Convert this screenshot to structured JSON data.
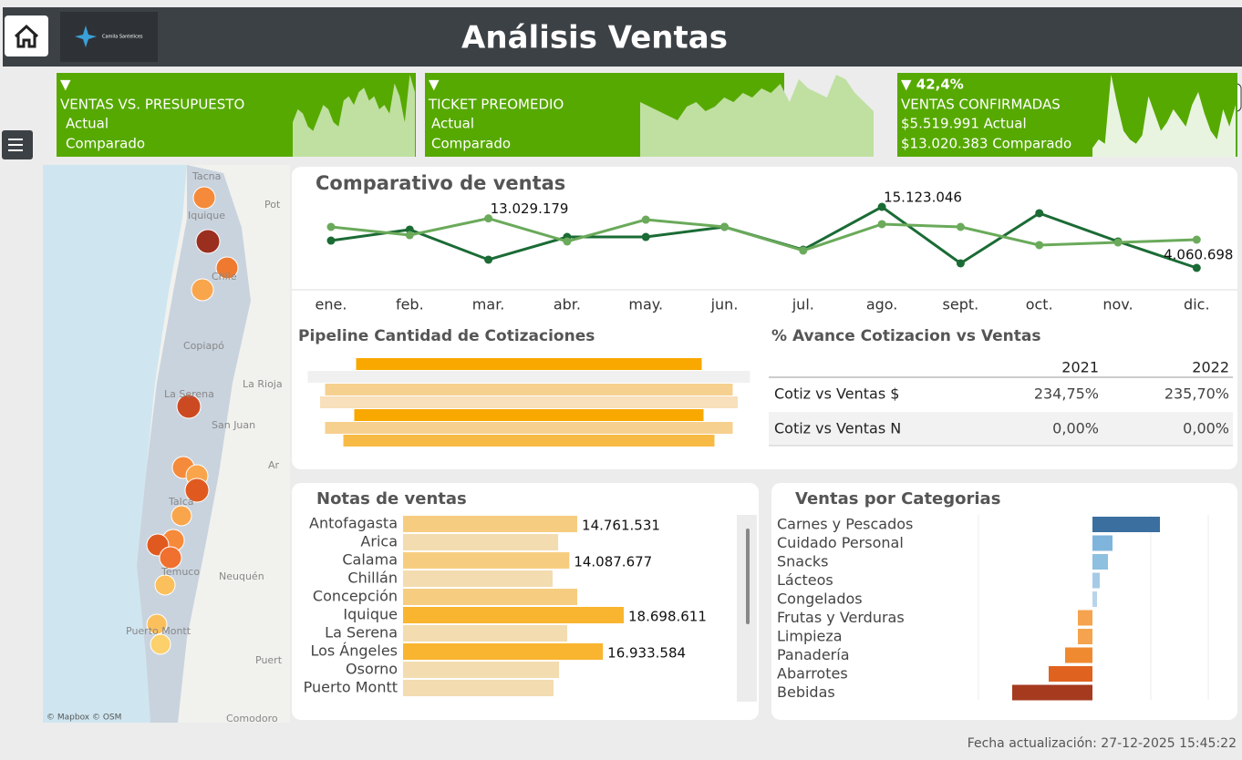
{
  "header": {
    "title": "Análisis Ventas",
    "logo_text": "Camila Santelices"
  },
  "kpis": [
    {
      "indicator": "▼",
      "title": "VENTAS VS. PRESUPUESTO",
      "line1": "Actual",
      "line2": "Comparado",
      "color": "#56a900",
      "spark_color": "#bfe0a0",
      "spark": [
        40,
        55,
        50,
        35,
        30,
        45,
        60,
        55,
        40,
        35,
        65,
        70,
        60,
        75,
        80,
        65,
        70,
        55,
        60,
        50,
        85,
        70,
        40,
        95,
        75
      ]
    },
    {
      "indicator": "▼",
      "title": "TICKET PREOMEDIO",
      "line1": "Actual",
      "line2": "Comparado",
      "color": "#56a900",
      "spark_color": "#bfe0a0",
      "spark": [
        60,
        55,
        50,
        45,
        40,
        55,
        60,
        50,
        55,
        65,
        60,
        70,
        65,
        75,
        70,
        80,
        60,
        85,
        75,
        70,
        65,
        90,
        85,
        70,
        60,
        50
      ]
    },
    {
      "indicator": "▼ 42,4%",
      "title": "VENTAS CONFIRMADAS",
      "line1": "$5.519.991 Actual",
      "line2": "$13.020.383 Comparado",
      "color": "#56a900",
      "spark_color": "#e8f4e0",
      "spark": [
        10,
        20,
        15,
        95,
        60,
        30,
        20,
        15,
        25,
        70,
        50,
        30,
        40,
        55,
        45,
        35,
        60,
        75,
        50,
        30,
        20,
        55,
        35,
        60
      ]
    }
  ],
  "map": {
    "attribution": "© Mapbox © OSM",
    "places": [
      "Tacna",
      "Iquique",
      "Chile",
      "Copiapó",
      "La Serena",
      "La Rioja",
      "San Juan",
      "Ar",
      "Talca",
      "Temuco",
      "Neuquén",
      "Puerto Montt",
      "Puert",
      "Comodoro",
      "Pot"
    ]
  },
  "line_chart": {
    "type": "line",
    "title": "Comparativo de ventas",
    "categories": [
      "ene.",
      "feb.",
      "mar.",
      "abr.",
      "may.",
      "jun.",
      "jul.",
      "ago.",
      "sept.",
      "oct.",
      "nov.",
      "dic."
    ],
    "series": [
      {
        "color": "#1b6b35",
        "values": [
          9010000,
          11000000,
          5550000,
          9670000,
          9670000,
          11490000,
          7360000,
          15123046,
          4890000,
          13970000,
          8850000,
          4060698
        ],
        "value_labels": [
          null,
          null,
          null,
          null,
          null,
          null,
          null,
          "15.123.046",
          null,
          null,
          null,
          "4.060.698"
        ]
      },
      {
        "color": "#6aaa5a",
        "values": [
          11490000,
          10000000,
          13029179,
          8850000,
          12810000,
          11490000,
          7200000,
          11990000,
          11490000,
          8190000,
          8680000,
          9180000
        ],
        "value_labels": [
          null,
          null,
          "13.029.179",
          null,
          null,
          null,
          null,
          null,
          null,
          null,
          null,
          null
        ]
      }
    ]
  },
  "pipeline": {
    "type": "funnel",
    "title": "Pipeline Cantidad de Cotizaciones",
    "values": [
      379,
      485,
      447,
      458,
      383,
      447,
      407
    ],
    "colors": [
      "#f9a800",
      "#f0f0f0",
      "#f6d08f",
      "#f7e0bb",
      "#f9a800",
      "#f6d08f",
      "#f7bb45"
    ]
  },
  "table": {
    "title": "% Avance Cotizacion vs Ventas",
    "columns": [
      "2021",
      "2022"
    ],
    "rows": [
      {
        "label": "Cotiz vs Ventas $",
        "values": [
          "234,75%",
          "235,70%"
        ]
      },
      {
        "label": "Cotiz vs Ventas N",
        "values": [
          "0,00%",
          "0,00%"
        ]
      }
    ]
  },
  "notas": {
    "type": "hbar",
    "title": "Notas de ventas",
    "categories": [
      "Antofagasta",
      "Arica",
      "Calama",
      "Chillán",
      "Concepción",
      "Iquique",
      "La Serena",
      "Los Ángeles",
      "Osorno",
      "Puerto Montt"
    ],
    "values": [
      14761531,
      13140000,
      14087677,
      12670000,
      14760000,
      18698611,
      13910000,
      16933584,
      13220000,
      12750000
    ],
    "value_labels": [
      "14.761.531",
      null,
      "14.087.677",
      null,
      null,
      "18.698.611",
      null,
      "16.933.584",
      null,
      null
    ],
    "colors": [
      "#f6cd80",
      "#f3dcb0",
      "#f6cd80",
      "#f3dcb0",
      "#f6cd80",
      "#f9b52f",
      "#f3dcb0",
      "#f9b52f",
      "#f3dcb0",
      "#f3dcb0"
    ]
  },
  "categorias": {
    "type": "hbar",
    "title": "Ventas por Categorias",
    "categories": [
      "Carnes y Pescados",
      "Cuidado Personal",
      "Snacks",
      "Lácteos",
      "Congelados",
      "Frutas y Verduras",
      "Limpieza",
      "Panadería",
      "Abarrotes",
      "Bebidas"
    ],
    "values": [
      74,
      22,
      17,
      8,
      5,
      -16,
      -16,
      -30,
      -48,
      -88
    ],
    "colors": [
      "#3b6fa0",
      "#7fb5dc",
      "#8ec0e0",
      "#a6cbe6",
      "#b8d4ea",
      "#f5a34f",
      "#f5a34f",
      "#f08a30",
      "#e0621f",
      "#a53a1f"
    ]
  },
  "footer": {
    "text": "Fecha actualización: 27-12-2025 15:45:22"
  }
}
